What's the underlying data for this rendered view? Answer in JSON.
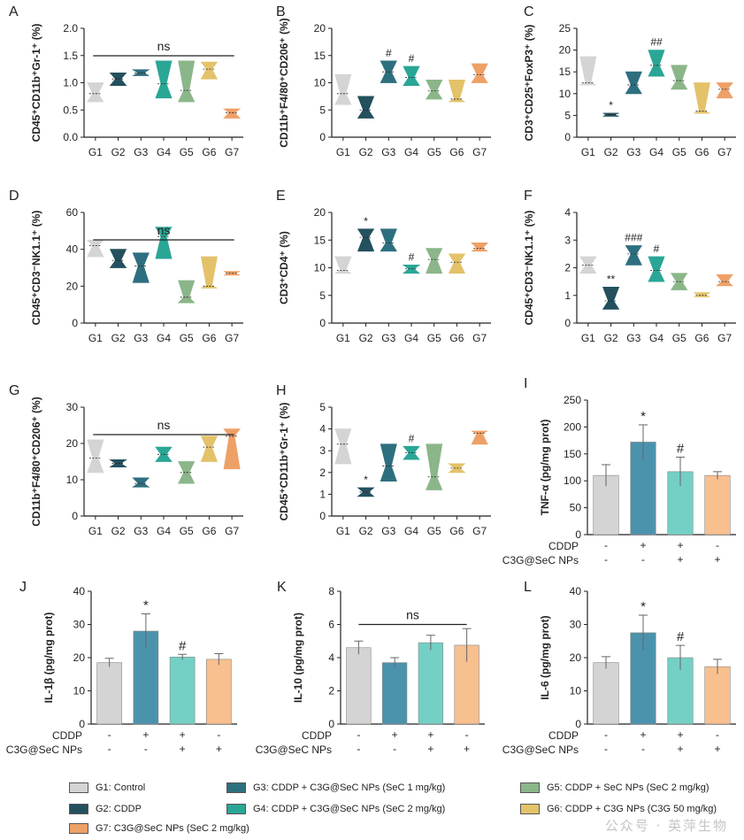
{
  "colors": {
    "G1": "#d4d4d4",
    "G2": "#24505e",
    "G3": "#2e6f7f",
    "G4": "#2aa696",
    "G5": "#8bb689",
    "G6": "#e3c26a",
    "G7": "#eea167",
    "bar_ctrl": "#d4d4d4",
    "bar_cddp": "#4b93ad",
    "bar_combo": "#74d0c5",
    "bar_np": "#f8bf8f"
  },
  "chart_data": [
    {
      "panel": "A",
      "type": "violin",
      "ylabel": "CD45⁺CD11b⁺Gr-1⁺ (%)",
      "ylim": [
        0,
        2.0
      ],
      "yticks": [
        "0.0",
        "0.5",
        "1.0",
        "1.5",
        "2.0"
      ],
      "categories": [
        "G1",
        "G2",
        "G3",
        "G4",
        "G5",
        "G6",
        "G7"
      ],
      "groups": [
        {
          "min": 0.65,
          "max": 1.0,
          "median": 0.8
        },
        {
          "min": 0.95,
          "max": 1.18,
          "median": 1.07
        },
        {
          "min": 1.13,
          "max": 1.24,
          "median": 1.18
        },
        {
          "min": 0.72,
          "max": 1.4,
          "median": 0.98
        },
        {
          "min": 0.65,
          "max": 1.4,
          "median": 0.86
        },
        {
          "min": 1.07,
          "max": 1.38,
          "median": 1.25
        },
        {
          "min": 0.35,
          "max": 0.52,
          "median": 0.45
        }
      ],
      "marks": [],
      "ns": "ns"
    },
    {
      "panel": "B",
      "type": "violin",
      "ylabel": "CD11b⁺F4/80⁺CD206⁺ (%)",
      "ylim": [
        0,
        20
      ],
      "yticks": [
        "0",
        "5",
        "10",
        "15",
        "20"
      ],
      "categories": [
        "G1",
        "G2",
        "G3",
        "G4",
        "G5",
        "G6",
        "G7"
      ],
      "groups": [
        {
          "min": 6,
          "max": 11.5,
          "median": 8
        },
        {
          "min": 3.5,
          "max": 7.5,
          "median": 5
        },
        {
          "min": 10,
          "max": 14,
          "median": 12
        },
        {
          "min": 9.5,
          "max": 13,
          "median": 11
        },
        {
          "min": 7,
          "max": 10.5,
          "median": 8.5
        },
        {
          "min": 6.5,
          "max": 10.5,
          "median": 7
        },
        {
          "min": 10,
          "max": 13.5,
          "median": 11.5
        }
      ],
      "marks": [
        {
          "group": 3,
          "text": "#"
        },
        {
          "group": 4,
          "text": "#"
        }
      ],
      "ns": ""
    },
    {
      "panel": "C",
      "type": "violin",
      "ylabel": "CD3⁺CD25⁺FoxP3⁺ (%)",
      "ylim": [
        0,
        25
      ],
      "yticks": [
        "0",
        "5",
        "10",
        "15",
        "20",
        "25"
      ],
      "categories": [
        "G1",
        "G2",
        "G3",
        "G4",
        "G5",
        "G6",
        "G7"
      ],
      "groups": [
        {
          "min": 12,
          "max": 18.5,
          "median": 12.5
        },
        {
          "min": 4.8,
          "max": 5.5,
          "median": 5.2
        },
        {
          "min": 10,
          "max": 15,
          "median": 12
        },
        {
          "min": 14,
          "max": 20,
          "median": 16.5
        },
        {
          "min": 11,
          "max": 16.5,
          "median": 13
        },
        {
          "min": 5.5,
          "max": 12.5,
          "median": 6
        },
        {
          "min": 9,
          "max": 12.5,
          "median": 11
        }
      ],
      "marks": [
        {
          "group": 2,
          "text": "*"
        },
        {
          "group": 4,
          "text": "##"
        }
      ],
      "ns": ""
    },
    {
      "panel": "D",
      "type": "violin",
      "ylabel": "CD45⁺CD3⁻NK1.1⁺ (%)",
      "ylim": [
        0,
        60
      ],
      "yticks": [
        "0",
        "20",
        "40",
        "60"
      ],
      "categories": [
        "G1",
        "G2",
        "G3",
        "G4",
        "G5",
        "G6",
        "G7"
      ],
      "groups": [
        {
          "min": 36,
          "max": 45,
          "median": 42
        },
        {
          "min": 30,
          "max": 40,
          "median": 34
        },
        {
          "min": 22,
          "max": 38,
          "median": 31
        },
        {
          "min": 35,
          "max": 52,
          "median": 47
        },
        {
          "min": 11,
          "max": 23,
          "median": 14
        },
        {
          "min": 19,
          "max": 36,
          "median": 20
        },
        {
          "min": 26,
          "max": 28,
          "median": 27
        }
      ],
      "marks": [],
      "ns": "ns"
    },
    {
      "panel": "E",
      "type": "violin",
      "ylabel": "CD3⁺CD4⁺ (%)",
      "ylim": [
        0,
        20
      ],
      "yticks": [
        "0",
        "5",
        "10",
        "15",
        "20"
      ],
      "categories": [
        "G1",
        "G2",
        "G3",
        "G4",
        "G5",
        "G6",
        "G7"
      ],
      "groups": [
        {
          "min": 9,
          "max": 12,
          "median": 9.5
        },
        {
          "min": 13,
          "max": 17,
          "median": 15.5
        },
        {
          "min": 13,
          "max": 17,
          "median": 14.5
        },
        {
          "min": 9,
          "max": 10.5,
          "median": 9.8
        },
        {
          "min": 9,
          "max": 13.5,
          "median": 11.5
        },
        {
          "min": 9,
          "max": 12.5,
          "median": 11
        },
        {
          "min": 13,
          "max": 14.5,
          "median": 13.5
        }
      ],
      "marks": [
        {
          "group": 2,
          "text": "*"
        },
        {
          "group": 4,
          "text": "#"
        }
      ],
      "ns": ""
    },
    {
      "panel": "F",
      "type": "violin",
      "ylabel": "CD45⁺CD3⁻NK1.1⁺ (%)",
      "ylim": [
        0,
        4
      ],
      "yticks": [
        "0",
        "1",
        "2",
        "3",
        "4"
      ],
      "categories": [
        "G1",
        "G2",
        "G3",
        "G4",
        "G5",
        "G6",
        "G7"
      ],
      "groups": [
        {
          "min": 1.8,
          "max": 2.4,
          "median": 2.1
        },
        {
          "min": 0.5,
          "max": 1.3,
          "median": 0.8
        },
        {
          "min": 2.1,
          "max": 2.8,
          "median": 2.5
        },
        {
          "min": 1.5,
          "max": 2.4,
          "median": 1.9
        },
        {
          "min": 1.2,
          "max": 1.8,
          "median": 1.5
        },
        {
          "min": 0.95,
          "max": 1.1,
          "median": 1.0
        },
        {
          "min": 1.35,
          "max": 1.75,
          "median": 1.5
        }
      ],
      "marks": [
        {
          "group": 2,
          "text": "**"
        },
        {
          "group": 3,
          "text": "###"
        },
        {
          "group": 4,
          "text": "#"
        }
      ],
      "ns": ""
    },
    {
      "panel": "G",
      "type": "violin",
      "ylabel": "CD11b⁺F4/80⁺CD206⁺ (%)",
      "ylim": [
        0,
        30
      ],
      "yticks": [
        "0",
        "10",
        "20",
        "30"
      ],
      "categories": [
        "G1",
        "G2",
        "G3",
        "G4",
        "G5",
        "G6",
        "G7"
      ],
      "groups": [
        {
          "min": 12,
          "max": 21,
          "median": 16
        },
        {
          "min": 13.5,
          "max": 15.5,
          "median": 14.5
        },
        {
          "min": 8,
          "max": 10.5,
          "median": 9
        },
        {
          "min": 15,
          "max": 19,
          "median": 17
        },
        {
          "min": 9,
          "max": 15,
          "median": 12
        },
        {
          "min": 15,
          "max": 22,
          "median": 19
        },
        {
          "min": 13,
          "max": 24,
          "median": 22
        }
      ],
      "marks": [],
      "ns": "ns"
    },
    {
      "panel": "H",
      "type": "violin",
      "ylabel": "CD45⁺CD11b⁺Gr-1⁺ (%)",
      "ylim": [
        0,
        5
      ],
      "yticks": [
        "0",
        "1",
        "2",
        "3",
        "4",
        "5"
      ],
      "categories": [
        "G1",
        "G2",
        "G3",
        "G4",
        "G5",
        "G6",
        "G7"
      ],
      "groups": [
        {
          "min": 2.4,
          "max": 4,
          "median": 3.3
        },
        {
          "min": 0.9,
          "max": 1.3,
          "median": 1.1
        },
        {
          "min": 1.6,
          "max": 3.3,
          "median": 2.3
        },
        {
          "min": 2.6,
          "max": 3.2,
          "median": 2.9
        },
        {
          "min": 1.2,
          "max": 3.3,
          "median": 1.8
        },
        {
          "min": 2.0,
          "max": 2.4,
          "median": 2.2
        },
        {
          "min": 3.3,
          "max": 3.9,
          "median": 3.8
        }
      ],
      "marks": [
        {
          "group": 2,
          "text": "*"
        },
        {
          "group": 4,
          "text": "#"
        }
      ],
      "ns": ""
    },
    {
      "panel": "I",
      "type": "bar",
      "ylabel": "TNF-α (pg/mg prot)",
      "ylim": [
        0,
        250
      ],
      "yticks": [
        "0",
        "50",
        "100",
        "150",
        "200",
        "250"
      ],
      "values": [
        110,
        172,
        117,
        110
      ],
      "errors": [
        20,
        32,
        27,
        7
      ],
      "marks": [
        "",
        "*",
        "#",
        ""
      ],
      "ns": "",
      "conditions": [
        {
          "label": "CDDP",
          "signs": [
            "-",
            "+",
            "+",
            "-"
          ]
        },
        {
          "label": "C3G@SeC NPs",
          "signs": [
            "-",
            "-",
            "+",
            "+"
          ]
        }
      ]
    },
    {
      "panel": "J",
      "type": "bar",
      "ylabel": "IL-1β (pg/mg prot)",
      "ylim": [
        0,
        40
      ],
      "yticks": [
        "0",
        "10",
        "20",
        "30",
        "40"
      ],
      "values": [
        18.5,
        28,
        20.2,
        19.5
      ],
      "errors": [
        1.3,
        5.2,
        0.8,
        1.7
      ],
      "marks": [
        "",
        "*",
        "#",
        ""
      ],
      "ns": "",
      "conditions": [
        {
          "label": "CDDP",
          "signs": [
            "-",
            "+",
            "+",
            "-"
          ]
        },
        {
          "label": "C3G@SeC NPs",
          "signs": [
            "-",
            "-",
            "+",
            "+"
          ]
        }
      ]
    },
    {
      "panel": "K",
      "type": "bar",
      "ylabel": "IL-10 (pg/mg prot)",
      "ylim": [
        0,
        8
      ],
      "yticks": [
        "0",
        "2",
        "4",
        "6",
        "8"
      ],
      "values": [
        4.6,
        3.7,
        4.9,
        4.75
      ],
      "errors": [
        0.4,
        0.3,
        0.45,
        1.0
      ],
      "marks": [
        "",
        "",
        "",
        ""
      ],
      "ns": "ns",
      "conditions": [
        {
          "label": "CDDP",
          "signs": [
            "-",
            "+",
            "+",
            "-"
          ]
        },
        {
          "label": "C3G@SeC NPs",
          "signs": [
            "-",
            "-",
            "+",
            "+"
          ]
        }
      ]
    },
    {
      "panel": "L",
      "type": "bar",
      "ylabel": "IL-6 (pg/mg prot)",
      "ylim": [
        0,
        40
      ],
      "yticks": [
        "0",
        "10",
        "20",
        "30",
        "40"
      ],
      "values": [
        18.5,
        27.5,
        20,
        17.3
      ],
      "errors": [
        1.8,
        5.3,
        3.7,
        2.2
      ],
      "marks": [
        "",
        "*",
        "#",
        ""
      ],
      "ns": "",
      "conditions": [
        {
          "label": "CDDP",
          "signs": [
            "-",
            "+",
            "+",
            "-"
          ]
        },
        {
          "label": "C3G@SeC NPs",
          "signs": [
            "-",
            "-",
            "+",
            "+"
          ]
        }
      ]
    }
  ],
  "legend": [
    {
      "key": "G1",
      "label": "G1: Control"
    },
    {
      "key": "G2",
      "label": "G2: CDDP"
    },
    {
      "key": "G3",
      "label": "G3: CDDP + C3G@SeC NPs (SeC 1 mg/kg)"
    },
    {
      "key": "G4",
      "label": "G4: CDDP + C3G@SeC NPs (SeC 2 mg/kg)"
    },
    {
      "key": "G5",
      "label": "G5: CDDP + SeC NPs (SeC 2 mg/kg)"
    },
    {
      "key": "G6",
      "label": "G6: CDDP + C3G NPs (C3G 50 mg/kg)"
    },
    {
      "key": "G7",
      "label": "G7: C3G@SeC NPs (SeC 2 mg/kg)"
    }
  ],
  "watermark": "公众号 · 英萍生物"
}
